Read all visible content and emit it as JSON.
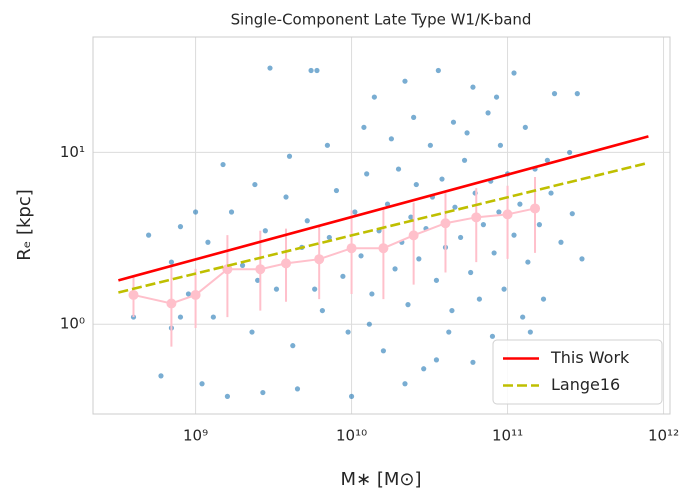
{
  "chart_data": {
    "type": "scatter",
    "title": "Single-Component Late Type W1/K-band",
    "xlabel": "M∗ [M⊙]",
    "ylabel": "Rₑ [kpc]",
    "xscale": "log",
    "yscale": "log",
    "xlim": [
      220000000.0,
      1100000000000.0
    ],
    "ylim": [
      0.3,
      47
    ],
    "xticks": [
      {
        "value": 1000000000.0,
        "label": "10⁹"
      },
      {
        "value": 10000000000.0,
        "label": "10¹⁰"
      },
      {
        "value": 100000000000.0,
        "label": "10¹¹"
      },
      {
        "value": 1000000000000.0,
        "label": "10¹²"
      }
    ],
    "yticks": [
      {
        "value": 1,
        "label": "10⁰"
      },
      {
        "value": 10,
        "label": "10¹"
      }
    ],
    "grid": true,
    "legend": "lower right",
    "series": [
      {
        "type": "scatter",
        "color": "#1f77b4",
        "x": [
          3000000000.0,
          5500000000.0,
          6000000000.0,
          14000000000.0,
          22000000000.0,
          36000000000.0,
          60000000000.0,
          85000000000.0,
          110000000000.0,
          200000000000.0,
          280000000000.0,
          1500000000.0,
          2400000000.0,
          4000000000.0,
          7000000000.0,
          12000000000.0,
          18000000000.0,
          25000000000.0,
          32000000000.0,
          45000000000.0,
          55000000000.0,
          75000000000.0,
          90000000000.0,
          130000000000.0,
          180000000000.0,
          250000000000.0,
          500000000.0,
          700000000.0,
          800000000.0,
          900000000.0,
          1200000000.0,
          1300000000.0,
          1700000000.0,
          2000000000.0,
          2300000000.0,
          2800000000.0,
          3300000000.0,
          3800000000.0,
          4200000000.0,
          4800000000.0,
          5200000000.0,
          6500000000.0,
          7200000000.0,
          8000000000.0,
          8800000000.0,
          9500000000.0,
          10500000000.0,
          11500000000.0,
          12500000000.0,
          13500000000.0,
          15000000000.0,
          16000000000.0,
          17000000000.0,
          19000000000.0,
          20000000000.0,
          21000000000.0,
          23000000000.0,
          24000000000.0,
          26000000000.0,
          27000000000.0,
          29000000000.0,
          30000000000.0,
          33000000000.0,
          35000000000.0,
          38000000000.0,
          40000000000.0,
          42000000000.0,
          46000000000.0,
          50000000000.0,
          53000000000.0,
          58000000000.0,
          62000000000.0,
          66000000000.0,
          70000000000.0,
          78000000000.0,
          82000000000.0,
          88000000000.0,
          95000000000.0,
          100000000000.0,
          110000000000.0,
          120000000000.0,
          135000000000.0,
          150000000000.0,
          160000000000.0,
          170000000000.0,
          190000000000.0,
          220000000000.0,
          260000000000.0,
          300000000000.0,
          700000000.0,
          600000000.0,
          1100000000.0,
          1600000000.0,
          2700000000.0,
          4500000000.0,
          10000000000.0,
          22000000000.0,
          35000000000.0,
          60000000000.0,
          140000000000.0,
          400000000.0,
          800000000.0,
          1000000000.0,
          2500000000.0,
          5800000000.0,
          13000000000.0,
          44000000000.0,
          80000000000.0,
          125000000000.0
        ],
        "values": [
          31,
          30,
          30,
          21,
          26,
          30,
          24,
          21,
          29,
          22,
          22,
          8.5,
          6.5,
          9.5,
          11,
          14,
          12,
          16,
          11,
          15,
          13,
          17,
          11,
          14,
          9,
          10,
          3.3,
          2.3,
          1.1,
          1.5,
          3,
          1.1,
          4.5,
          2.2,
          0.9,
          3.5,
          1.6,
          5.5,
          0.75,
          2.8,
          4,
          1.2,
          3.2,
          6,
          1.9,
          0.9,
          4.5,
          2.5,
          7.5,
          1.5,
          3.5,
          0.7,
          5,
          2.1,
          8,
          3,
          1.3,
          4.2,
          6.5,
          2.4,
          0.55,
          3.6,
          5.5,
          1.8,
          7,
          2.8,
          0.9,
          4.8,
          3.2,
          9,
          2,
          5.8,
          1.4,
          3.8,
          6.8,
          2.6,
          4.5,
          1.6,
          7.5,
          3.3,
          5,
          2.3,
          8,
          3.8,
          1.4,
          5.8,
          3,
          4.4,
          2.4,
          0.95,
          0.5,
          0.45,
          0.38,
          0.4,
          0.42,
          0.38,
          0.45,
          0.62,
          0.6,
          0.9,
          1.1,
          3.7,
          4.5,
          1.8,
          1.6,
          1.0,
          1.2,
          0.85,
          1.1
        ]
      },
      {
        "type": "errorbar",
        "color": "#ffc0cb",
        "x": [
          400000000.0,
          700000000.0,
          1000000000.0,
          1600000000.0,
          2600000000.0,
          3800000000.0,
          6200000000.0,
          10000000000.0,
          16000000000.0,
          25000000000.0,
          40000000000.0,
          63000000000.0,
          100000000000.0,
          150000000000.0
        ],
        "values": [
          1.48,
          1.32,
          1.48,
          2.09,
          2.09,
          2.26,
          2.39,
          2.77,
          2.77,
          3.29,
          3.87,
          4.19,
          4.36,
          4.72
        ],
        "lower": [
          1.1,
          0.74,
          0.95,
          1.1,
          1.2,
          1.35,
          1.4,
          1.5,
          1.4,
          1.7,
          2.0,
          2.3,
          2.4,
          2.6
        ],
        "upper": [
          1.9,
          2.15,
          2.1,
          3.3,
          3.5,
          3.6,
          3.7,
          4.6,
          4.7,
          5.1,
          5.8,
          6.2,
          6.4,
          7.2
        ]
      },
      {
        "type": "line",
        "name": "This Work",
        "color": "#ff0000",
        "dash": false,
        "x": [
          320000000.0,
          800000000000.0
        ],
        "values": [
          1.8,
          12.4
        ]
      },
      {
        "type": "line",
        "name": "Lange16",
        "color": "#bfbf00",
        "dash": true,
        "x": [
          320000000.0,
          800000000000.0
        ],
        "values": [
          1.53,
          8.7
        ]
      }
    ]
  }
}
